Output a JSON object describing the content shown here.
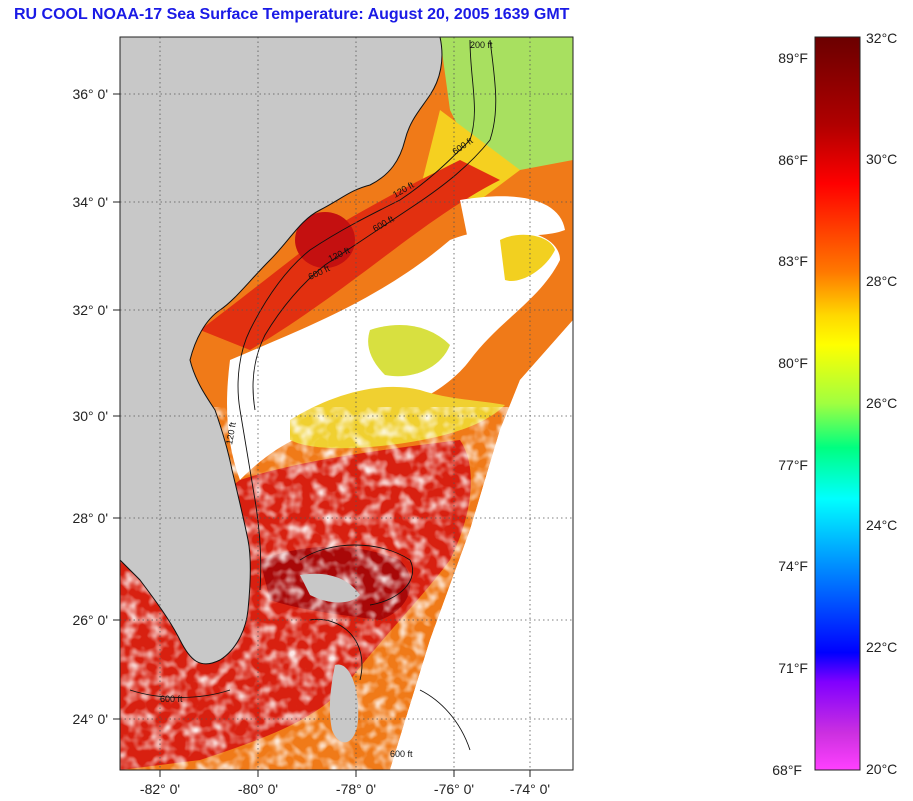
{
  "title": "RU COOL  NOAA-17  Sea Surface Temperature:  August 20, 2005 1639 GMT",
  "map": {
    "lon_ticks": [
      "-82° 0'",
      "-80° 0'",
      "-78° 0'",
      "-76° 0'",
      "-74° 0'"
    ],
    "lat_ticks": [
      "36° 0'",
      "34° 0'",
      "32° 0'",
      "30° 0'",
      "28° 0'",
      "26° 0'",
      "24° 0'"
    ],
    "contour_labels": [
      "200 ft",
      "600 ft",
      "120 ft",
      "600 ft",
      "120 ft",
      "600 ft",
      "120 ft",
      "600 ft",
      "600 ft"
    ],
    "colors": {
      "land": "#c8c8c8",
      "cloud": "#ffffff",
      "warm_dark": "#b00000",
      "warm": "#e82010",
      "orange": "#f57a10",
      "yellow": "#f2e020",
      "green": "#9ae05a"
    }
  },
  "colorbar": {
    "celsius_labels": [
      "32°C",
      "30°C",
      "28°C",
      "26°C",
      "24°C",
      "22°C",
      "20°C"
    ],
    "fahrenheit_labels": [
      "89°F",
      "86°F",
      "83°F",
      "80°F",
      "77°F",
      "74°F",
      "71°F",
      "68°F"
    ],
    "gradient": [
      "#6b0000",
      "#b00000",
      "#ff0000",
      "#ff7800",
      "#ffd800",
      "#ffff00",
      "#a0ff40",
      "#00ff80",
      "#00ffff",
      "#0090ff",
      "#0000ff",
      "#8000ff",
      "#ff40ff"
    ]
  }
}
